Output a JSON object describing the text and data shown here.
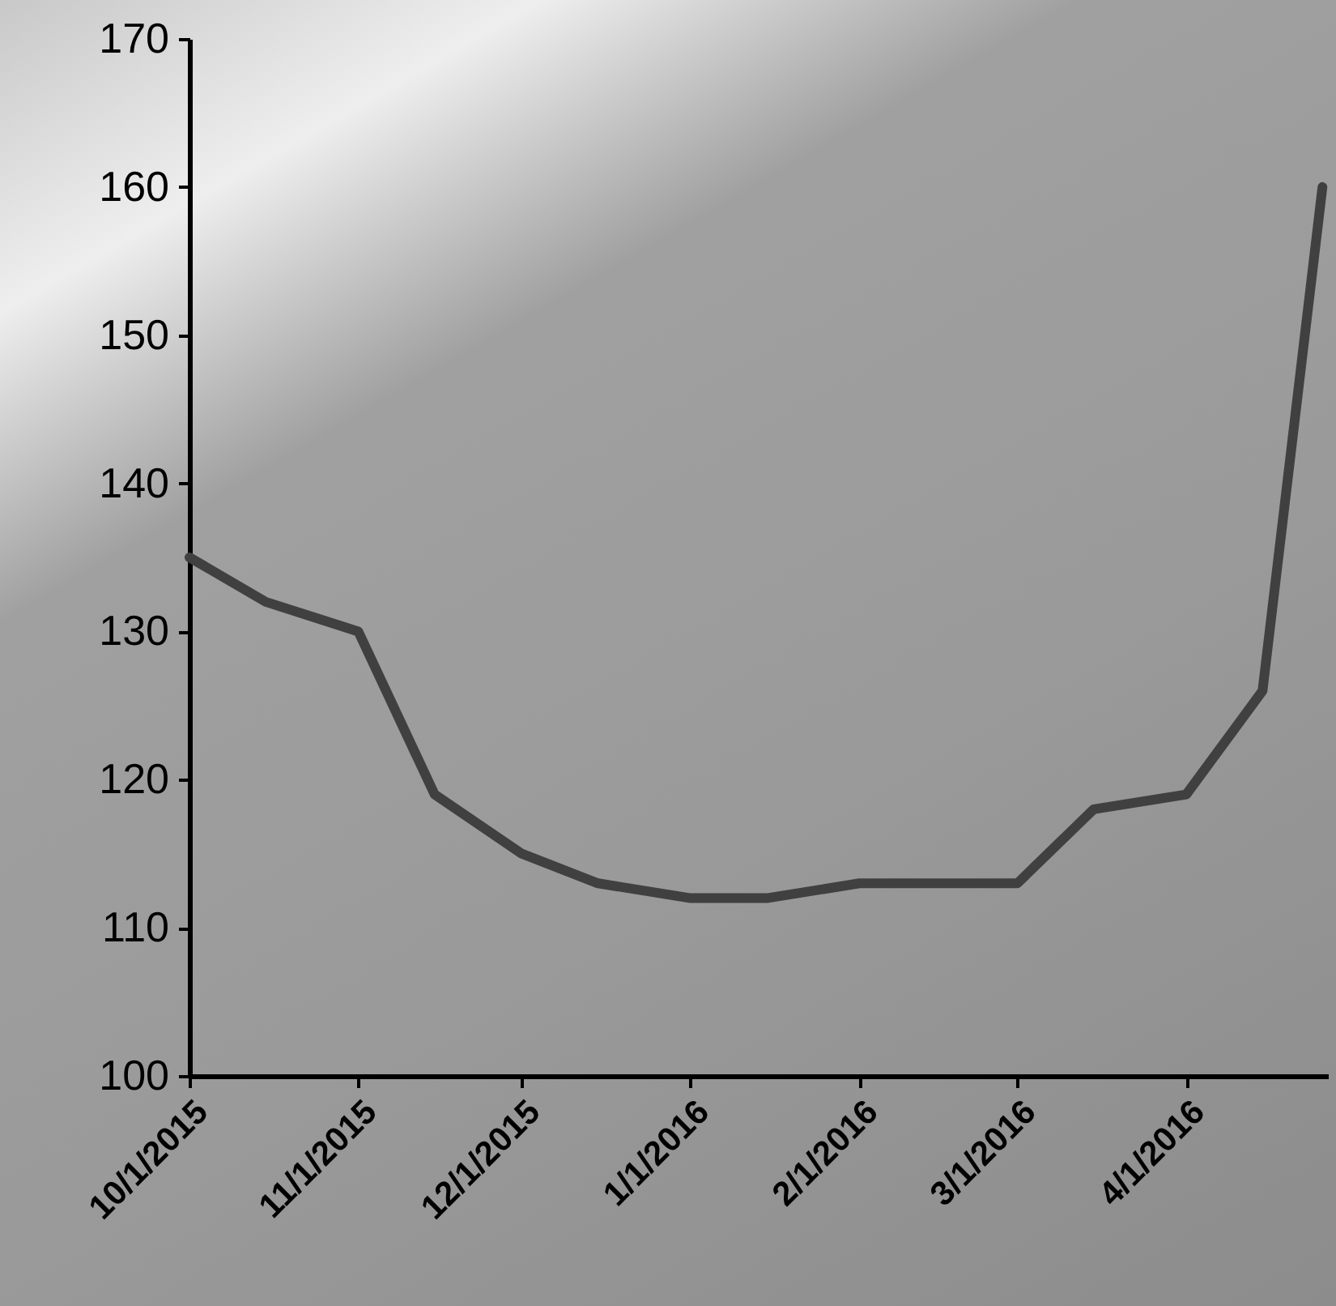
{
  "chart_data": {
    "type": "line",
    "x": [
      "2015-10-01",
      "2015-10-15",
      "2015-11-01",
      "2015-11-15",
      "2015-12-01",
      "2015-12-15",
      "2016-01-01",
      "2016-01-15",
      "2016-02-01",
      "2016-02-15",
      "2016-03-01",
      "2016-03-15",
      "2016-04-01",
      "2016-04-15",
      "2016-04-26"
    ],
    "series": [
      {
        "color": "#404040",
        "values": [
          135,
          132,
          130,
          119,
          115,
          113,
          112,
          112,
          113,
          113,
          113,
          118,
          119,
          126,
          160
        ]
      }
    ],
    "xlim": [
      "2015-10-01",
      "2016-04-27"
    ],
    "xticks": [
      {
        "value": "2015-10-01",
        "label": "10/1/2015"
      },
      {
        "value": "2015-11-01",
        "label": "11/1/2015"
      },
      {
        "value": "2015-12-01",
        "label": "12/1/2015"
      },
      {
        "value": "2016-01-01",
        "label": "1/1/2016"
      },
      {
        "value": "2016-02-01",
        "label": "2/1/2016"
      },
      {
        "value": "2016-03-01",
        "label": "3/1/2016"
      },
      {
        "value": "2016-04-01",
        "label": "4/1/2016"
      }
    ],
    "ylim": [
      100,
      170
    ],
    "yticks": [
      100,
      110,
      120,
      130,
      140,
      150,
      160,
      170
    ],
    "grid": false,
    "marker": "none",
    "line_style": "solid"
  }
}
